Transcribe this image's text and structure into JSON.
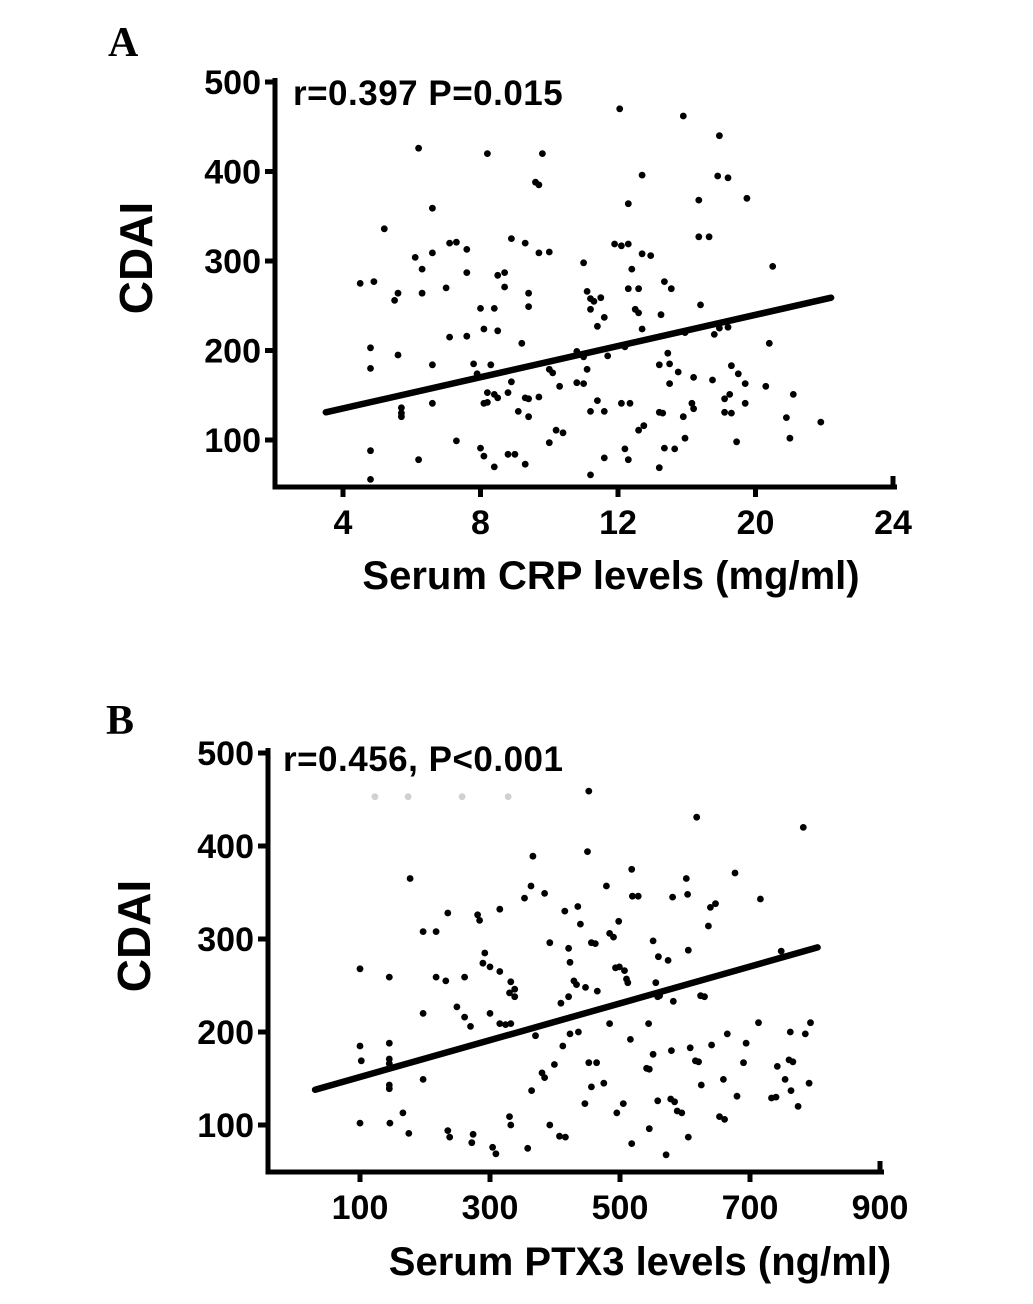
{
  "figure_colors": {
    "ink": "#000000",
    "background": "#ffffff"
  },
  "chart_data": [
    {
      "type": "scatter",
      "panel_label": "A",
      "annotation": "r=0.397 P=0.015",
      "xlabel": "Serum CRP levels (mg/ml)",
      "ylabel": "CDAI",
      "x_tick_labels": [
        4,
        8,
        12,
        20,
        24
      ],
      "y_tick_labels": [
        100,
        200,
        300,
        400,
        500
      ],
      "xlim_note": "x ticks evenly spaced despite uneven values; axis drawn from ~2 to ~24",
      "ylim": [
        50,
        500
      ],
      "grid": false,
      "stats": {
        "r": 0.397,
        "P": "0.015"
      },
      "regression_line": [
        [
          3.5,
          131
        ],
        [
          22.2,
          259
        ]
      ],
      "points": [
        [
          6.2,
          426
        ],
        [
          8.2,
          420
        ],
        [
          9.8,
          420
        ],
        [
          9.6,
          388
        ],
        [
          9.7,
          385
        ],
        [
          6.6,
          359
        ],
        [
          5.2,
          336
        ],
        [
          7.1,
          320
        ],
        [
          7.3,
          321
        ],
        [
          7.6,
          313
        ],
        [
          8.9,
          325
        ],
        [
          9.3,
          320
        ],
        [
          6.1,
          304
        ],
        [
          6.3,
          291
        ],
        [
          6.6,
          309
        ],
        [
          7.6,
          287
        ],
        [
          8.5,
          284
        ],
        [
          8.7,
          287
        ],
        [
          9.7,
          309
        ],
        [
          10.0,
          310
        ],
        [
          4.5,
          275
        ],
        [
          4.9,
          277
        ],
        [
          5.6,
          264
        ],
        [
          6.3,
          264
        ],
        [
          7.0,
          270
        ],
        [
          5.5,
          256
        ],
        [
          8.7,
          271
        ],
        [
          9.4,
          264
        ],
        [
          9.4,
          249
        ],
        [
          8.0,
          247
        ],
        [
          8.4,
          247
        ],
        [
          8.1,
          224
        ],
        [
          8.5,
          222
        ],
        [
          7.1,
          215
        ],
        [
          7.6,
          216
        ],
        [
          9.2,
          208
        ],
        [
          4.8,
          203
        ],
        [
          5.6,
          195
        ],
        [
          4.8,
          180
        ],
        [
          6.6,
          184
        ],
        [
          7.8,
          185
        ],
        [
          7.9,
          174
        ],
        [
          8.3,
          184
        ],
        [
          8.9,
          165
        ],
        [
          10.0,
          179
        ],
        [
          10.1,
          175
        ],
        [
          8.2,
          153
        ],
        [
          8.4,
          151
        ],
        [
          8.5,
          147
        ],
        [
          8.2,
          142
        ],
        [
          8.1,
          141
        ],
        [
          8.8,
          153
        ],
        [
          9.3,
          147
        ],
        [
          9.4,
          146
        ],
        [
          9.7,
          148
        ],
        [
          5.7,
          136
        ],
        [
          5.7,
          130
        ],
        [
          5.7,
          126
        ],
        [
          6.6,
          141
        ],
        [
          9.1,
          132
        ],
        [
          9.4,
          126
        ],
        [
          7.3,
          99
        ],
        [
          4.8,
          88
        ],
        [
          6.2,
          78
        ],
        [
          8.0,
          91
        ],
        [
          8.1,
          82
        ],
        [
          8.8,
          84
        ],
        [
          9.0,
          84
        ],
        [
          8.4,
          70
        ],
        [
          9.3,
          73
        ],
        [
          4.8,
          56
        ],
        [
          10.2,
          111
        ],
        [
          10.4,
          108
        ],
        [
          10.0,
          97
        ],
        [
          10.3,
          160
        ],
        [
          10.8,
          164
        ],
        [
          11.0,
          163
        ],
        [
          10.8,
          199
        ],
        [
          11.0,
          193
        ],
        [
          11.1,
          179
        ],
        [
          12.1,
          470
        ],
        [
          15.8,
          462
        ],
        [
          17.9,
          440
        ],
        [
          13.4,
          396
        ],
        [
          17.8,
          395
        ],
        [
          18.4,
          393
        ],
        [
          12.6,
          364
        ],
        [
          16.7,
          368
        ],
        [
          19.5,
          370
        ],
        [
          16.7,
          327
        ],
        [
          17.3,
          327
        ],
        [
          11.9,
          319
        ],
        [
          12.2,
          317
        ],
        [
          12.6,
          319
        ],
        [
          13.4,
          308
        ],
        [
          13.9,
          306
        ],
        [
          12.8,
          291
        ],
        [
          11.0,
          298
        ],
        [
          14.7,
          277
        ],
        [
          15.1,
          269
        ],
        [
          12.6,
          269
        ],
        [
          13.2,
          269
        ],
        [
          11.1,
          266
        ],
        [
          11.2,
          258
        ],
        [
          11.3,
          255
        ],
        [
          11.5,
          259
        ],
        [
          11.2,
          246
        ],
        [
          11.6,
          237
        ],
        [
          13.0,
          246
        ],
        [
          13.2,
          242
        ],
        [
          11.4,
          227
        ],
        [
          13.4,
          224
        ],
        [
          14.5,
          240
        ],
        [
          16.8,
          251
        ],
        [
          20.5,
          294
        ],
        [
          15.9,
          220
        ],
        [
          17.6,
          218
        ],
        [
          17.9,
          225
        ],
        [
          18.4,
          226
        ],
        [
          20.4,
          208
        ],
        [
          11.7,
          194
        ],
        [
          12.4,
          204
        ],
        [
          14.9,
          197
        ],
        [
          15.0,
          185
        ],
        [
          14.4,
          184
        ],
        [
          15.5,
          176
        ],
        [
          16.4,
          170
        ],
        [
          17.5,
          167
        ],
        [
          18.6,
          183
        ],
        [
          19.0,
          174
        ],
        [
          19.4,
          163
        ],
        [
          20.3,
          160
        ],
        [
          15.0,
          163
        ],
        [
          11.4,
          144
        ],
        [
          11.6,
          132
        ],
        [
          11.2,
          132
        ],
        [
          12.2,
          141
        ],
        [
          12.7,
          141
        ],
        [
          13.2,
          111
        ],
        [
          13.5,
          116
        ],
        [
          12.4,
          90
        ],
        [
          12.6,
          78
        ],
        [
          14.4,
          131
        ],
        [
          14.6,
          130
        ],
        [
          15.8,
          126
        ],
        [
          16.3,
          141
        ],
        [
          16.4,
          135
        ],
        [
          18.2,
          146
        ],
        [
          18.5,
          151
        ],
        [
          18.2,
          131
        ],
        [
          18.6,
          130
        ],
        [
          15.9,
          102
        ],
        [
          18.9,
          98
        ],
        [
          19.4,
          141
        ],
        [
          20.9,
          125
        ],
        [
          21.1,
          151
        ],
        [
          21.0,
          102
        ],
        [
          21.9,
          120
        ],
        [
          14.7,
          91
        ],
        [
          15.3,
          90
        ],
        [
          11.6,
          80
        ],
        [
          14.4,
          69
        ],
        [
          11.2,
          61
        ]
      ]
    },
    {
      "type": "scatter",
      "panel_label": "B",
      "annotation": "r=0.456, P<0.001",
      "xlabel": "Serum PTX3 levels (ng/ml)",
      "ylabel": "CDAI",
      "x_tick_labels": [
        100,
        300,
        500,
        700,
        900
      ],
      "y_tick_labels": [
        100,
        200,
        300,
        400,
        500
      ],
      "xlim_note": "x axis drawn from ~30 to ~910",
      "ylim": [
        50,
        500
      ],
      "grid": false,
      "stats": {
        "r": 0.456,
        "P": "<0.001"
      },
      "regression_line": [
        [
          31,
          138
        ],
        [
          804,
          291
        ]
      ],
      "faint_points": [
        [
          123,
          453
        ],
        [
          174,
          453
        ],
        [
          257,
          453
        ],
        [
          328,
          453
        ]
      ],
      "points": [
        [
          177,
          365
        ],
        [
          366,
          389
        ],
        [
          363,
          357
        ],
        [
          235,
          328
        ],
        [
          281,
          326
        ],
        [
          284,
          320
        ],
        [
          315,
          332
        ],
        [
          353,
          344
        ],
        [
          197,
          308
        ],
        [
          217,
          308
        ],
        [
          292,
          285
        ],
        [
          289,
          274
        ],
        [
          300,
          270
        ],
        [
          315,
          265
        ],
        [
          332,
          254
        ],
        [
          338,
          246
        ],
        [
          330,
          242
        ],
        [
          100,
          268
        ],
        [
          145,
          259
        ],
        [
          217,
          259
        ],
        [
          232,
          255
        ],
        [
          261,
          259
        ],
        [
          249,
          227
        ],
        [
          261,
          216
        ],
        [
          270,
          206
        ],
        [
          197,
          220
        ],
        [
          300,
          220
        ],
        [
          315,
          209
        ],
        [
          324,
          208
        ],
        [
          332,
          209
        ],
        [
          338,
          238
        ],
        [
          370,
          196
        ],
        [
          100,
          185
        ],
        [
          102,
          169
        ],
        [
          145,
          188
        ],
        [
          145,
          171
        ],
        [
          145,
          166
        ],
        [
          197,
          149
        ],
        [
          145,
          143
        ],
        [
          145,
          139
        ],
        [
          166,
          113
        ],
        [
          100,
          102
        ],
        [
          146,
          102
        ],
        [
          175,
          91
        ],
        [
          235,
          94
        ],
        [
          238,
          87
        ],
        [
          274,
          90
        ],
        [
          272,
          81
        ],
        [
          304,
          76
        ],
        [
          309,
          69
        ],
        [
          332,
          100
        ],
        [
          330,
          109
        ],
        [
          380,
          156
        ],
        [
          384,
          151
        ],
        [
          399,
          165
        ],
        [
          364,
          137
        ],
        [
          392,
          100
        ],
        [
          407,
          88
        ],
        [
          416,
          87
        ],
        [
          358,
          75
        ],
        [
          409,
          231
        ],
        [
          421,
          238
        ],
        [
          412,
          185
        ],
        [
          423,
          275
        ],
        [
          392,
          296
        ],
        [
          421,
          290
        ],
        [
          415,
          330
        ],
        [
          384,
          349
        ],
        [
          423,
          198
        ],
        [
          452,
          459
        ],
        [
          618,
          431
        ],
        [
          782,
          420
        ],
        [
          450,
          394
        ],
        [
          518,
          375
        ],
        [
          677,
          371
        ],
        [
          479,
          357
        ],
        [
          602,
          365
        ],
        [
          604,
          348
        ],
        [
          519,
          346
        ],
        [
          528,
          346
        ],
        [
          581,
          345
        ],
        [
          639,
          334
        ],
        [
          647,
          338
        ],
        [
          636,
          314
        ],
        [
          484,
          306
        ],
        [
          490,
          302
        ],
        [
          498,
          319
        ],
        [
          435,
          335
        ],
        [
          439,
          316
        ],
        [
          456,
          296
        ],
        [
          462,
          295
        ],
        [
          551,
          298
        ],
        [
          605,
          288
        ],
        [
          748,
          287
        ],
        [
          716,
          343
        ],
        [
          559,
          281
        ],
        [
          574,
          277
        ],
        [
          493,
          269
        ],
        [
          499,
          270
        ],
        [
          507,
          266
        ],
        [
          510,
          257
        ],
        [
          512,
          253
        ],
        [
          429,
          255
        ],
        [
          433,
          251
        ],
        [
          447,
          248
        ],
        [
          465,
          244
        ],
        [
          555,
          253
        ],
        [
          561,
          239
        ],
        [
          558,
          238
        ],
        [
          582,
          233
        ],
        [
          624,
          239
        ],
        [
          630,
          238
        ],
        [
          484,
          209
        ],
        [
          544,
          209
        ],
        [
          436,
          200
        ],
        [
          516,
          192
        ],
        [
          665,
          198
        ],
        [
          713,
          210
        ],
        [
          762,
          200
        ],
        [
          785,
          198
        ],
        [
          793,
          210
        ],
        [
          579,
          180
        ],
        [
          608,
          183
        ],
        [
          641,
          186
        ],
        [
          694,
          188
        ],
        [
          551,
          176
        ],
        [
          452,
          167
        ],
        [
          464,
          167
        ],
        [
          616,
          169
        ],
        [
          621,
          168
        ],
        [
          541,
          161
        ],
        [
          545,
          160
        ],
        [
          690,
          167
        ],
        [
          742,
          163
        ],
        [
          760,
          170
        ],
        [
          766,
          168
        ],
        [
          456,
          141
        ],
        [
          446,
          123
        ],
        [
          475,
          145
        ],
        [
          505,
          123
        ],
        [
          625,
          143
        ],
        [
          659,
          149
        ],
        [
          754,
          149
        ],
        [
          763,
          137
        ],
        [
          774,
          120
        ],
        [
          791,
          145
        ],
        [
          680,
          131
        ],
        [
          733,
          129
        ],
        [
          740,
          130
        ],
        [
          558,
          126
        ],
        [
          578,
          128
        ],
        [
          584,
          125
        ],
        [
          588,
          115
        ],
        [
          595,
          113
        ],
        [
          495,
          113
        ],
        [
          653,
          109
        ],
        [
          661,
          106
        ],
        [
          545,
          96
        ],
        [
          605,
          87
        ],
        [
          518,
          80
        ],
        [
          571,
          68
        ]
      ]
    }
  ]
}
